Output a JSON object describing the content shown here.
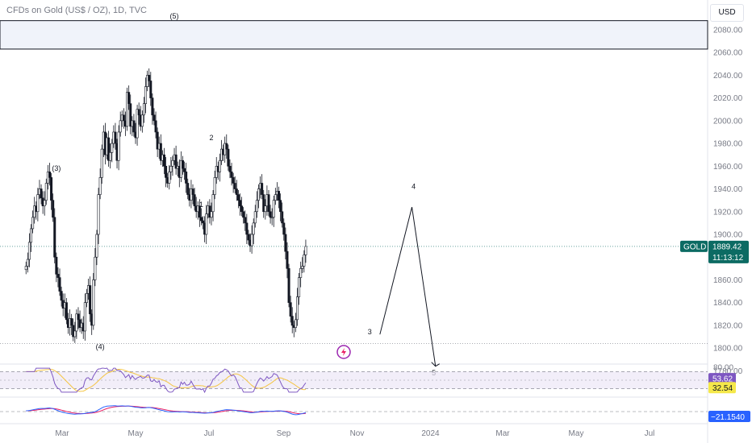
{
  "header": {
    "title": "CFDs on Gold (US$ / OZ), 1D, TVC",
    "currency": "USD"
  },
  "colors": {
    "price_badge": "#0c6b63",
    "rsi_badge": "#7e57c2",
    "rsi_ma_badge": "#f5e84a",
    "macd_badge": "#2962ff",
    "rsi_line": "#7e57c2",
    "rsi_ma_line": "#f5c542",
    "macd_line": "#2962ff",
    "signal_line": "#e91e63",
    "lightning": "#9c27b0"
  },
  "icons": {
    "alert": "lightning-icon"
  },
  "chart_data": {
    "type": "candlestick",
    "title": "CFDs on Gold (US$ / OZ), 1D, TVC",
    "symbol": "GOLD",
    "ylim": [
      1776,
      2092
    ],
    "y_ticks": [
      2080,
      2060,
      2040,
      2020,
      2000,
      1980,
      1960,
      1940,
      1920,
      1900,
      1860,
      1840,
      1820,
      1800,
      1780
    ],
    "y_tick_labels": [
      "2080.00",
      "2060.00",
      "2040.00",
      "2020.00",
      "2000.00",
      "1980.00",
      "1960.00",
      "1940.00",
      "1920.00",
      "1900.00",
      "1860.00",
      "1840.00",
      "1820.00",
      "1800.00",
      "1780.00"
    ],
    "x_ticks": [
      "2023-03-01",
      "2023-05-01",
      "2023-07-01",
      "2023-09-01",
      "2023-11-01",
      "2024-01-01",
      "2024-03-01",
      "2024-05-01",
      "2024-07-01"
    ],
    "x_tick_labels": [
      "Mar",
      "May",
      "Jul",
      "Sep",
      "Nov",
      "2024",
      "Mar",
      "May",
      "Jul"
    ],
    "last_price": 1889.42,
    "last_price_label": "1889.42",
    "countdown": "11:13:12",
    "resistance_zone": [
      2063,
      2088
    ],
    "support_line": 1804,
    "closes": [
      1872,
      1878,
      1893,
      1905,
      1915,
      1925,
      1920,
      1935,
      1940,
      1932,
      1925,
      1930,
      1945,
      1955,
      1950,
      1930,
      1915,
      1880,
      1865,
      1862,
      1850,
      1842,
      1835,
      1840,
      1825,
      1818,
      1826,
      1820,
      1810,
      1815,
      1830,
      1825,
      1818,
      1822,
      1815,
      1840,
      1848,
      1855,
      1830,
      1820,
      1860,
      1880,
      1900,
      1935,
      1950,
      1975,
      1990,
      1970,
      1985,
      1965,
      1972,
      1980,
      1990,
      1980,
      1965,
      1990,
      2000,
      2005,
      2000,
      1995,
      2025,
      2015,
      1995,
      2000,
      1990,
      1985,
      2010,
      2005,
      1995,
      2005,
      2015,
      2030,
      2040,
      2035,
      2020,
      2005,
      2000,
      1990,
      1975,
      1980,
      1965,
      1970,
      1960,
      1950,
      1945,
      1955,
      1960,
      1965,
      1970,
      1958,
      1960,
      1950,
      1965,
      1958,
      1955,
      1945,
      1935,
      1930,
      1940,
      1935,
      1925,
      1920,
      1925,
      1915,
      1912,
      1910,
      1900,
      1918,
      1925,
      1915,
      1920,
      1935,
      1950,
      1960,
      1955,
      1965,
      1975,
      1970,
      1980,
      1975,
      1960,
      1955,
      1950,
      1945,
      1940,
      1935,
      1930,
      1925,
      1920,
      1915,
      1910,
      1900,
      1895,
      1890,
      1900,
      1910,
      1920,
      1930,
      1940,
      1945,
      1935,
      1920,
      1925,
      1935,
      1920,
      1915,
      1915,
      1930,
      1935,
      1938,
      1930,
      1920,
      1910,
      1900,
      1885,
      1870,
      1840,
      1828,
      1820,
      1818,
      1825,
      1845,
      1862,
      1870,
      1872,
      1882,
      1889.42
    ],
    "waves": [
      {
        "label": "(3)",
        "date_index": 18,
        "price": 1956
      },
      {
        "label": "(4)",
        "date_index": 44,
        "price": 1799
      },
      {
        "label": "(5)",
        "date_index": 88,
        "price": 2090
      },
      {
        "label": "1",
        "date_index": 104,
        "price": 1924
      },
      {
        "label": "2",
        "date_index": 110,
        "price": 1983
      },
      {
        "label": "3",
        "date_index": 204,
        "price": 1812
      },
      {
        "label": "4",
        "date_index": 230,
        "price": 1940
      },
      {
        "label": "5",
        "date_index": 242,
        "price": 1776
      }
    ],
    "projection": [
      {
        "date_index": 210,
        "price": 1812
      },
      {
        "date_index": 229,
        "price": 1924
      },
      {
        "date_index": 243,
        "price": 1784
      }
    ],
    "rsi": {
      "value": 53.62,
      "value_label": "53.62",
      "ma_value": 32.54,
      "ma_value_label": "32.54",
      "ylim": [
        20,
        80
      ],
      "upper": 70,
      "lower": 30,
      "y_tick_labels": [
        "80.00"
      ]
    },
    "macd": {
      "value": -21.154,
      "value_label": "−21.1540"
    }
  }
}
